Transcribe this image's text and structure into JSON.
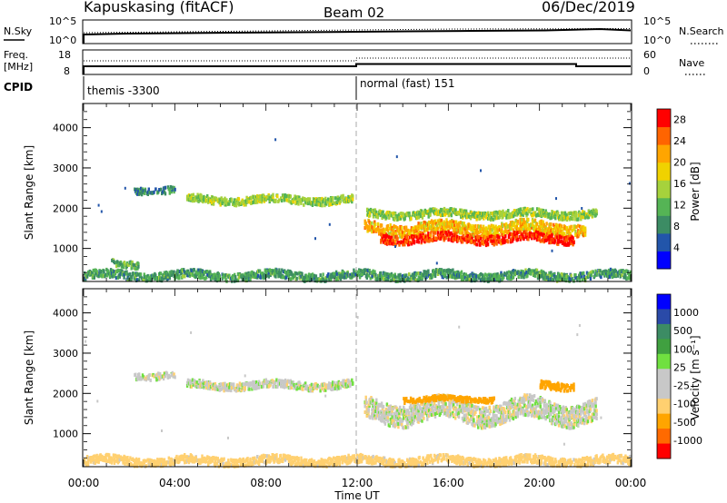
{
  "header": {
    "station": "Kapuskasing (fitACF)",
    "beam": "Beam 02",
    "date": "06/Dec/2019"
  },
  "noise_panel": {
    "left_label": "N.Sky",
    "right_label": "N.Search",
    "left_ticks": [
      "10^5",
      "10^0"
    ],
    "right_ticks": [
      "10^5",
      "10^0"
    ]
  },
  "freq_panel": {
    "left_label_1": "Freq.",
    "left_label_2": "[MHz]",
    "right_label": "Nave",
    "left_ticks": [
      "18",
      "8"
    ],
    "right_ticks": [
      "60",
      "0"
    ]
  },
  "cpid_panel": {
    "label": "CPID",
    "segments": [
      {
        "name": "themis -3300",
        "start_hour": 0
      },
      {
        "name": "normal (fast) 151",
        "start_hour": 12
      }
    ]
  },
  "colors": {
    "power_scale": [
      "#0000ff",
      "#2255aa",
      "#3c8c64",
      "#55b455",
      "#a6d23c",
      "#f0d200",
      "#ffa500",
      "#ff6400",
      "#ff0000"
    ],
    "velocity_scale": [
      "#ff0000",
      "#ff6a00",
      "#ffa500",
      "#ffd070",
      "#c8c8c8",
      "#c8c8c8",
      "#70e040",
      "#40a040",
      "#3c8c64",
      "#2a4aa8",
      "#0000ff"
    ],
    "ground_scatter": "#c8c8c8"
  },
  "chart_data": [
    {
      "type": "heatmap",
      "name": "power",
      "ylabel": "Slant Range [km]",
      "yticks": [
        1000,
        2000,
        3000,
        4000
      ],
      "ylim": [
        180,
        4600
      ],
      "xlim_hours": [
        0,
        24
      ],
      "colorbar_label": "Power [dB]",
      "colorbar_ticks": [
        "4",
        "8",
        "12",
        "16",
        "20",
        "24",
        "28"
      ],
      "colorbar_range": [
        0,
        30
      ],
      "regions": [
        {
          "t0": 4.5,
          "t1": 11.8,
          "r_center": 2200,
          "r_half_width": 90,
          "value": 14
        },
        {
          "t0": 2.2,
          "t1": 4.0,
          "r_center": 2450,
          "r_half_width": 80,
          "value": 8
        },
        {
          "t0": 12.4,
          "t1": 22.5,
          "r_center": 1850,
          "r_half_width": 90,
          "value": 14
        },
        {
          "t0": 12.3,
          "t1": 22.0,
          "r_center": 1500,
          "r_half_width": 140,
          "value": 20
        },
        {
          "t0": 13.0,
          "t1": 21.5,
          "r_center": 1250,
          "r_half_width": 110,
          "value": 27
        },
        {
          "t0": 1.2,
          "t1": 2.4,
          "r_center": 600,
          "r_half_width": 80,
          "value": 12
        },
        {
          "t0": 0,
          "t1": 24,
          "r_center": 320,
          "r_half_width": 100,
          "value": 10
        }
      ]
    },
    {
      "type": "heatmap",
      "name": "velocity",
      "ylabel": "Slant Range [km]",
      "yticks": [
        1000,
        2000,
        3000,
        4000
      ],
      "ylim": [
        180,
        4600
      ],
      "xlim_hours": [
        0,
        24
      ],
      "xticks": [
        "00:00",
        "04:00",
        "08:00",
        "12:00",
        "16:00",
        "20:00",
        "00:00"
      ],
      "xlabel": "Time UT",
      "colorbar_label": "Velocity [m s⁻¹]",
      "colorbar_ticks": [
        "1000",
        "500",
        "100",
        "25",
        "-25",
        "-100",
        "-500",
        "-1000"
      ],
      "regions": [
        {
          "t0": 4.5,
          "t1": 11.8,
          "r_center": 2200,
          "r_half_width": 90,
          "value": 0
        },
        {
          "t0": 2.2,
          "t1": 4.0,
          "r_center": 2450,
          "r_half_width": 80,
          "value": 0
        },
        {
          "t0": 12.3,
          "t1": 22.5,
          "r_center": 1550,
          "r_half_width": 260,
          "value": 0
        },
        {
          "t0": 14.0,
          "t1": 18.0,
          "r_center": 1850,
          "r_half_width": 60,
          "value": -150
        },
        {
          "t0": 20.0,
          "t1": 21.5,
          "r_center": 2200,
          "r_half_width": 90,
          "value": -300
        },
        {
          "t0": 0,
          "t1": 24,
          "r_center": 320,
          "r_half_width": 100,
          "value": -60
        }
      ]
    }
  ]
}
